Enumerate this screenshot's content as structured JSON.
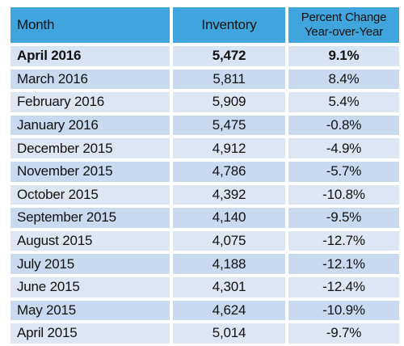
{
  "table": {
    "headers": {
      "month": "Month",
      "inventory": "Inventory",
      "pct_line1": "Percent Change",
      "pct_line2": "Year-over-Year"
    },
    "rows": [
      {
        "month": "April 2016",
        "inventory": "5,472",
        "pct": "9.1%"
      },
      {
        "month": "March 2016",
        "inventory": "5,811",
        "pct": "8.4%"
      },
      {
        "month": "February 2016",
        "inventory": "5,909",
        "pct": "5.4%"
      },
      {
        "month": "January 2016",
        "inventory": "5,475",
        "pct": "-0.8%"
      },
      {
        "month": "December 2015",
        "inventory": "4,912",
        "pct": "-4.9%"
      },
      {
        "month": "November 2015",
        "inventory": "4,786",
        "pct": "-5.7%"
      },
      {
        "month": "October 2015",
        "inventory": "4,392",
        "pct": "-10.8%"
      },
      {
        "month": "September 2015",
        "inventory": "4,140",
        "pct": "-9.5%"
      },
      {
        "month": "August 2015",
        "inventory": "4,075",
        "pct": "-12.7%"
      },
      {
        "month": "July 2015",
        "inventory": "4,188",
        "pct": "-12.1%"
      },
      {
        "month": "June 2015",
        "inventory": "4,301",
        "pct": "-12.4%"
      },
      {
        "month": "May 2015",
        "inventory": "4,624",
        "pct": "-10.9%"
      },
      {
        "month": "April 2015",
        "inventory": "5,014",
        "pct": "-9.7%"
      }
    ]
  },
  "colors": {
    "header": "#3fa5dc",
    "row_a": "#c9daf0",
    "row_b": "#dde6f3"
  }
}
